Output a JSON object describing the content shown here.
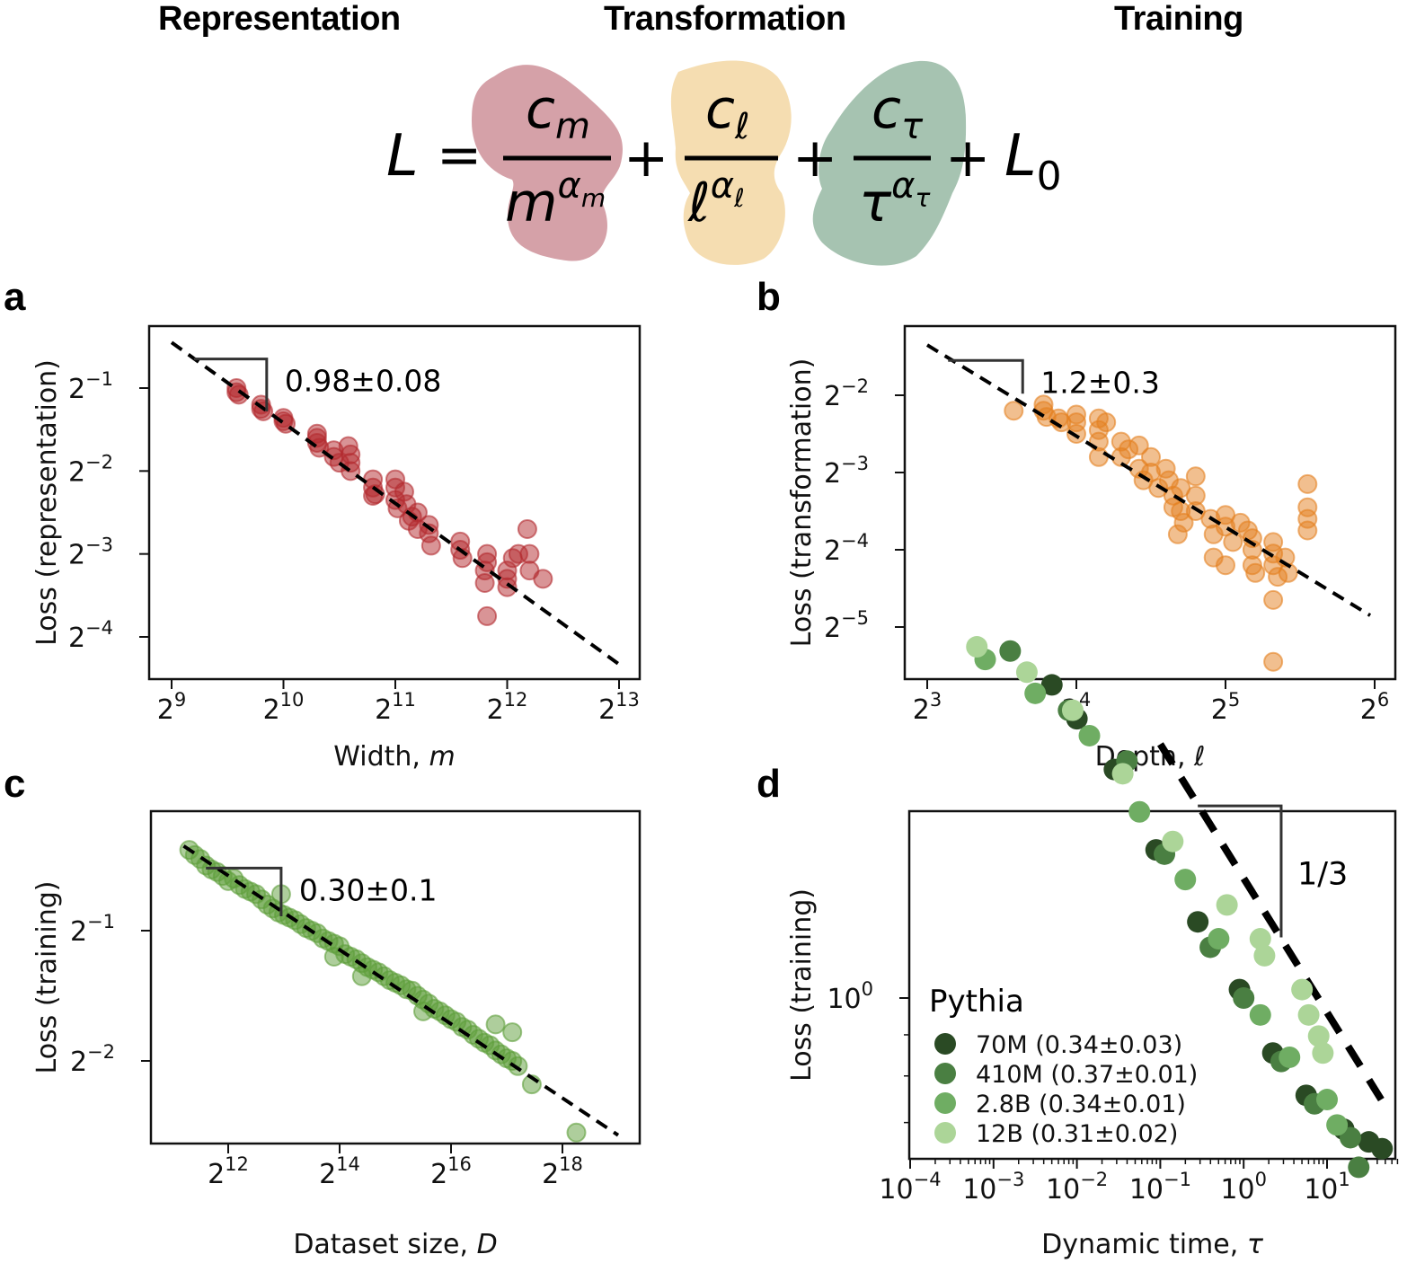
{
  "header": {
    "representation": {
      "label": "Representation",
      "color": "#a3242f"
    },
    "transformation": {
      "label": "Transformation",
      "color": "#e0922c"
    },
    "training": {
      "label": "Training",
      "color": "#3c6e3a"
    }
  },
  "formula": {
    "lhs": "L",
    "equals": "=",
    "plus": "+",
    "terms": [
      {
        "num_base": "c",
        "num_sub": "m",
        "den_base": "m",
        "den_sup": "α",
        "den_sup_sub": "m",
        "blob_color": "#d5a1a8"
      },
      {
        "num_base": "c",
        "num_sub": "ℓ",
        "den_base": "ℓ",
        "den_sup": "α",
        "den_sup_sub": "ℓ",
        "blob_color": "#f5ddb1"
      },
      {
        "num_base": "c",
        "num_sub": "τ",
        "den_base": "τ",
        "den_sup": "α",
        "den_sup_sub": "τ",
        "blob_color": "#a6c3b1"
      }
    ],
    "tail_base": "L",
    "tail_sub": "0"
  },
  "panels": {
    "a": {
      "letter": "a"
    },
    "b": {
      "letter": "b"
    },
    "c": {
      "letter": "c"
    },
    "d": {
      "letter": "d"
    }
  },
  "chart_data": [
    {
      "id": "a",
      "type": "scatter",
      "xscale": "log2",
      "yscale": "log2",
      "xlabel": "Width, ",
      "xlabel_italic": "m",
      "ylabel": "Loss (representation)",
      "xlim_log2": [
        8.8,
        13.2
      ],
      "ylim_log2": [
        -0.25,
        -4.5
      ],
      "xticks_log2": [
        9,
        10,
        11,
        12,
        13
      ],
      "yticks_log2": [
        -1,
        -2,
        -3,
        -4
      ],
      "color": "#b32a2e",
      "fit": {
        "slope": -0.98,
        "x_log2": [
          9.0,
          13.0
        ],
        "y_log2": [
          -0.45,
          -4.33
        ]
      },
      "slope_annotation": "0.98±0.08",
      "triangle": {
        "x_log2": [
          9.2,
          9.85
        ],
        "y_log2": [
          -0.65,
          -1.28
        ]
      },
      "points_log2": [
        [
          9.58,
          -1.0
        ],
        [
          9.58,
          -1.05
        ],
        [
          9.6,
          -1.08
        ],
        [
          9.8,
          -1.2
        ],
        [
          9.8,
          -1.25
        ],
        [
          9.82,
          -1.28
        ],
        [
          10.0,
          -1.36
        ],
        [
          10.0,
          -1.4
        ],
        [
          10.02,
          -1.43
        ],
        [
          10.3,
          -1.6
        ],
        [
          10.3,
          -1.66
        ],
        [
          10.32,
          -1.72
        ],
        [
          10.3,
          -1.55
        ],
        [
          10.45,
          -1.75
        ],
        [
          10.45,
          -1.83
        ],
        [
          10.5,
          -1.9
        ],
        [
          10.6,
          -1.8
        ],
        [
          10.6,
          -1.9
        ],
        [
          10.6,
          -2.0
        ],
        [
          10.58,
          -1.7
        ],
        [
          10.8,
          -2.1
        ],
        [
          10.8,
          -2.2
        ],
        [
          10.82,
          -2.28
        ],
        [
          10.8,
          -2.3
        ],
        [
          11.0,
          -2.1
        ],
        [
          11.0,
          -2.2
        ],
        [
          11.0,
          -2.35
        ],
        [
          11.02,
          -2.45
        ],
        [
          11.08,
          -2.25
        ],
        [
          11.1,
          -2.4
        ],
        [
          11.15,
          -2.55
        ],
        [
          11.12,
          -2.6
        ],
        [
          11.2,
          -2.5
        ],
        [
          11.2,
          -2.7
        ],
        [
          11.3,
          -2.65
        ],
        [
          11.3,
          -2.75
        ],
        [
          11.32,
          -2.9
        ],
        [
          11.58,
          -2.85
        ],
        [
          11.58,
          -2.95
        ],
        [
          11.6,
          -3.05
        ],
        [
          11.82,
          -3.0
        ],
        [
          11.82,
          -3.1
        ],
        [
          11.8,
          -3.2
        ],
        [
          11.8,
          -3.35
        ],
        [
          12.0,
          -3.2
        ],
        [
          12.0,
          -3.3
        ],
        [
          12.05,
          -3.05
        ],
        [
          12.1,
          -3.0
        ],
        [
          12.18,
          -2.7
        ],
        [
          12.2,
          -3.0
        ],
        [
          12.2,
          -3.2
        ],
        [
          12.32,
          -3.3
        ],
        [
          11.82,
          -3.75
        ],
        [
          12.0,
          -3.4
        ]
      ]
    },
    {
      "id": "b",
      "type": "scatter",
      "xscale": "log2",
      "yscale": "log2",
      "xlabel": "Depth, ",
      "xlabel_italic": "ℓ",
      "ylabel": "Loss (transformation)",
      "xlim_log2": [
        2.85,
        6.2
      ],
      "ylim_log2": [
        -0.95,
        -5.45
      ],
      "xticks_log2": [
        3,
        4,
        5,
        6
      ],
      "yticks_log2": [
        -2,
        -3,
        -4,
        -5
      ],
      "color": "#e4801f",
      "fit": {
        "slope": -1.2,
        "x_log2": [
          3.0,
          5.97
        ],
        "y_log2": [
          -1.35,
          -4.85
        ]
      },
      "slope_annotation": "1.2±0.3",
      "triangle": {
        "x_log2": [
          3.14,
          3.64
        ],
        "y_log2": [
          -1.55,
          -1.98
        ]
      },
      "points_log2": [
        [
          3.58,
          -2.2
        ],
        [
          3.78,
          -2.12
        ],
        [
          3.78,
          -2.2
        ],
        [
          3.8,
          -2.28
        ],
        [
          3.88,
          -2.3
        ],
        [
          3.9,
          -2.35
        ],
        [
          4.0,
          -2.25
        ],
        [
          4.0,
          -2.35
        ],
        [
          4.0,
          -2.5
        ],
        [
          4.15,
          -2.3
        ],
        [
          4.15,
          -2.45
        ],
        [
          4.15,
          -2.6
        ],
        [
          4.15,
          -2.8
        ],
        [
          4.2,
          -2.35
        ],
        [
          4.3,
          -2.6
        ],
        [
          4.3,
          -2.8
        ],
        [
          4.35,
          -2.7
        ],
        [
          4.42,
          -2.65
        ],
        [
          4.42,
          -2.95
        ],
        [
          4.45,
          -3.1
        ],
        [
          4.5,
          -2.8
        ],
        [
          4.5,
          -3.0
        ],
        [
          4.55,
          -3.2
        ],
        [
          4.6,
          -2.95
        ],
        [
          4.62,
          -3.1
        ],
        [
          4.65,
          -3.3
        ],
        [
          4.65,
          -3.45
        ],
        [
          4.7,
          -3.2
        ],
        [
          4.7,
          -3.5
        ],
        [
          4.72,
          -3.65
        ],
        [
          4.8,
          -3.3
        ],
        [
          4.8,
          -3.5
        ],
        [
          4.8,
          -3.05
        ],
        [
          4.68,
          -3.8
        ],
        [
          4.9,
          -3.6
        ],
        [
          4.92,
          -3.8
        ],
        [
          4.92,
          -4.1
        ],
        [
          5.0,
          -3.55
        ],
        [
          5.0,
          -3.7
        ],
        [
          5.0,
          -4.2
        ],
        [
          5.05,
          -3.9
        ],
        [
          5.1,
          -3.65
        ],
        [
          5.15,
          -3.75
        ],
        [
          5.18,
          -3.85
        ],
        [
          5.18,
          -4.0
        ],
        [
          5.18,
          -4.2
        ],
        [
          5.2,
          -4.3
        ],
        [
          5.32,
          -3.9
        ],
        [
          5.32,
          -4.05
        ],
        [
          5.32,
          -4.2
        ],
        [
          5.35,
          -4.35
        ],
        [
          5.4,
          -4.1
        ],
        [
          5.42,
          -4.3
        ],
        [
          5.32,
          -4.65
        ],
        [
          5.32,
          -5.45
        ],
        [
          5.55,
          -3.15
        ],
        [
          5.55,
          -3.45
        ],
        [
          5.55,
          -3.6
        ],
        [
          5.55,
          -3.75
        ]
      ]
    },
    {
      "id": "c",
      "type": "scatter",
      "xscale": "log2",
      "yscale": "log2",
      "xlabel": "Dataset size, ",
      "xlabel_italic": "D",
      "ylabel": "Loss (training)",
      "xlim_log2": [
        10.8,
        19.3
      ],
      "ylim_log2": [
        -0.28,
        -2.62
      ],
      "xticks_log2": [
        12,
        14,
        16,
        18
      ],
      "yticks_log2": [
        -1,
        -2
      ],
      "color": "#5e9e3a",
      "fit": {
        "slope": -0.3,
        "x_log2": [
          11.2,
          19.0
        ],
        "y_log2": [
          -0.35,
          -2.57
        ]
      },
      "slope_annotation": "0.30±0.1",
      "triangle": {
        "x_log2": [
          11.6,
          12.95
        ],
        "y_log2": [
          -0.52,
          -0.89
        ]
      },
      "points_log2": [
        [
          11.3,
          -0.38
        ],
        [
          11.4,
          -0.42
        ],
        [
          11.5,
          -0.45
        ],
        [
          11.6,
          -0.5
        ],
        [
          11.7,
          -0.53
        ],
        [
          11.8,
          -0.55
        ],
        [
          11.9,
          -0.58
        ],
        [
          12.0,
          -0.62
        ],
        [
          12.1,
          -0.6
        ],
        [
          12.2,
          -0.65
        ],
        [
          12.3,
          -0.68
        ],
        [
          12.4,
          -0.7
        ],
        [
          12.5,
          -0.72
        ],
        [
          12.6,
          -0.76
        ],
        [
          12.7,
          -0.8
        ],
        [
          12.8,
          -0.83
        ],
        [
          12.95,
          -0.72
        ],
        [
          12.9,
          -0.86
        ],
        [
          13.0,
          -0.88
        ],
        [
          13.1,
          -0.9
        ],
        [
          13.2,
          -0.92
        ],
        [
          13.3,
          -0.95
        ],
        [
          13.4,
          -0.98
        ],
        [
          13.5,
          -1.0
        ],
        [
          13.6,
          -1.02
        ],
        [
          13.7,
          -1.06
        ],
        [
          13.8,
          -1.08
        ],
        [
          13.9,
          -1.1
        ],
        [
          14.0,
          -1.12
        ],
        [
          13.9,
          -1.2
        ],
        [
          14.1,
          -1.18
        ],
        [
          14.2,
          -1.2
        ],
        [
          14.3,
          -1.22
        ],
        [
          14.4,
          -1.25
        ],
        [
          14.5,
          -1.28
        ],
        [
          14.4,
          -1.35
        ],
        [
          14.6,
          -1.3
        ],
        [
          14.7,
          -1.32
        ],
        [
          14.8,
          -1.35
        ],
        [
          14.9,
          -1.38
        ],
        [
          15.0,
          -1.4
        ],
        [
          15.1,
          -1.42
        ],
        [
          15.2,
          -1.45
        ],
        [
          15.3,
          -1.46
        ],
        [
          15.4,
          -1.5
        ],
        [
          15.5,
          -1.53
        ],
        [
          15.6,
          -1.56
        ],
        [
          15.5,
          -1.62
        ],
        [
          15.7,
          -1.6
        ],
        [
          15.8,
          -1.62
        ],
        [
          15.9,
          -1.65
        ],
        [
          16.0,
          -1.68
        ],
        [
          16.1,
          -1.7
        ],
        [
          16.2,
          -1.74
        ],
        [
          16.3,
          -1.76
        ],
        [
          16.4,
          -1.8
        ],
        [
          16.5,
          -1.83
        ],
        [
          16.6,
          -1.86
        ],
        [
          16.7,
          -1.88
        ],
        [
          16.8,
          -1.92
        ],
        [
          16.9,
          -1.95
        ],
        [
          16.8,
          -1.72
        ],
        [
          17.0,
          -1.98
        ],
        [
          17.1,
          -2.0
        ],
        [
          17.1,
          -1.78
        ],
        [
          17.2,
          -2.04
        ],
        [
          17.45,
          -2.18
        ],
        [
          18.25,
          -2.55
        ]
      ]
    },
    {
      "id": "d",
      "type": "scatter",
      "xscale": "log10",
      "yscale": "log10",
      "xlabel": "Dynamic time, ",
      "xlabel_italic": "τ",
      "ylabel": "Loss (training)",
      "xlim_log10": [
        -4.0,
        1.85
      ],
      "ylim_log10": [
        0.44,
        -0.21
      ],
      "xticks_log10": [
        -4,
        -3,
        -2,
        -1,
        0,
        1
      ],
      "xtick_labels": [
        "10",
        "10",
        "10",
        "10",
        "10",
        "10"
      ],
      "xtick_exps": [
        "−4",
        "−3",
        "−2",
        "−1",
        "0",
        "1"
      ],
      "yticks_log10": [
        0
      ],
      "ytick_labels": [
        "10"
      ],
      "ytick_exps": [
        "0"
      ],
      "reference_line": {
        "slope": -0.3333,
        "x_log10": [
          -1.0,
          1.65
        ],
        "y_log10": [
          0.3,
          -0.12
        ]
      },
      "slope_annotation": "1/3",
      "triangle": {
        "x_log10": [
          -0.55,
          0.45
        ],
        "y_log10": [
          0.227,
          0.0717
        ]
      },
      "legend": {
        "title": "Pythia",
        "placement": "lower-left"
      },
      "series": [
        {
          "name": "70M (0.34±0.03)",
          "color": "#2a4a24",
          "points_log10": [
            [
              -2.3,
              0.37
            ],
            [
              -2.0,
              0.33
            ],
            [
              -1.55,
              0.27
            ],
            [
              -1.05,
              0.175
            ],
            [
              -0.55,
              0.09
            ],
            [
              -0.05,
              0.01
            ],
            [
              0.35,
              -0.065
            ],
            [
              0.75,
              -0.115
            ],
            [
              1.2,
              -0.155
            ],
            [
              1.5,
              -0.17
            ],
            [
              1.66,
              -0.178
            ]
          ]
        },
        {
          "name": "410M (0.37±0.01)",
          "color": "#4a7f42",
          "points_log10": [
            [
              -2.8,
              0.41
            ],
            [
              -2.1,
              0.34
            ],
            [
              -1.4,
              0.28
            ],
            [
              -0.95,
              0.17
            ],
            [
              -0.4,
              0.06
            ],
            [
              0.0,
              0.0
            ],
            [
              0.45,
              -0.075
            ],
            [
              0.85,
              -0.125
            ],
            [
              1.28,
              -0.165
            ],
            [
              1.38,
              -0.2
            ]
          ]
        },
        {
          "name": "2.8B (0.34±0.01)",
          "color": "#6fad63",
          "points_log10": [
            [
              -3.1,
              0.4
            ],
            [
              -2.5,
              0.36
            ],
            [
              -1.85,
              0.31
            ],
            [
              -1.25,
              0.22
            ],
            [
              -0.7,
              0.14
            ],
            [
              -0.3,
              0.07
            ],
            [
              0.2,
              -0.02
            ],
            [
              0.55,
              -0.07
            ],
            [
              1.0,
              -0.12
            ],
            [
              1.12,
              -0.15
            ]
          ]
        },
        {
          "name": "12B (0.31±0.02)",
          "color": "#acd598",
          "points_log10": [
            [
              -3.2,
              0.415
            ],
            [
              -2.6,
              0.385
            ],
            [
              -2.05,
              0.34
            ],
            [
              -1.45,
              0.265
            ],
            [
              -0.85,
              0.185
            ],
            [
              -0.2,
              0.11
            ],
            [
              0.2,
              0.07
            ],
            [
              0.25,
              0.05
            ],
            [
              0.7,
              0.01
            ],
            [
              0.78,
              -0.02
            ],
            [
              0.9,
              -0.045
            ],
            [
              0.95,
              -0.065
            ]
          ]
        }
      ]
    }
  ]
}
